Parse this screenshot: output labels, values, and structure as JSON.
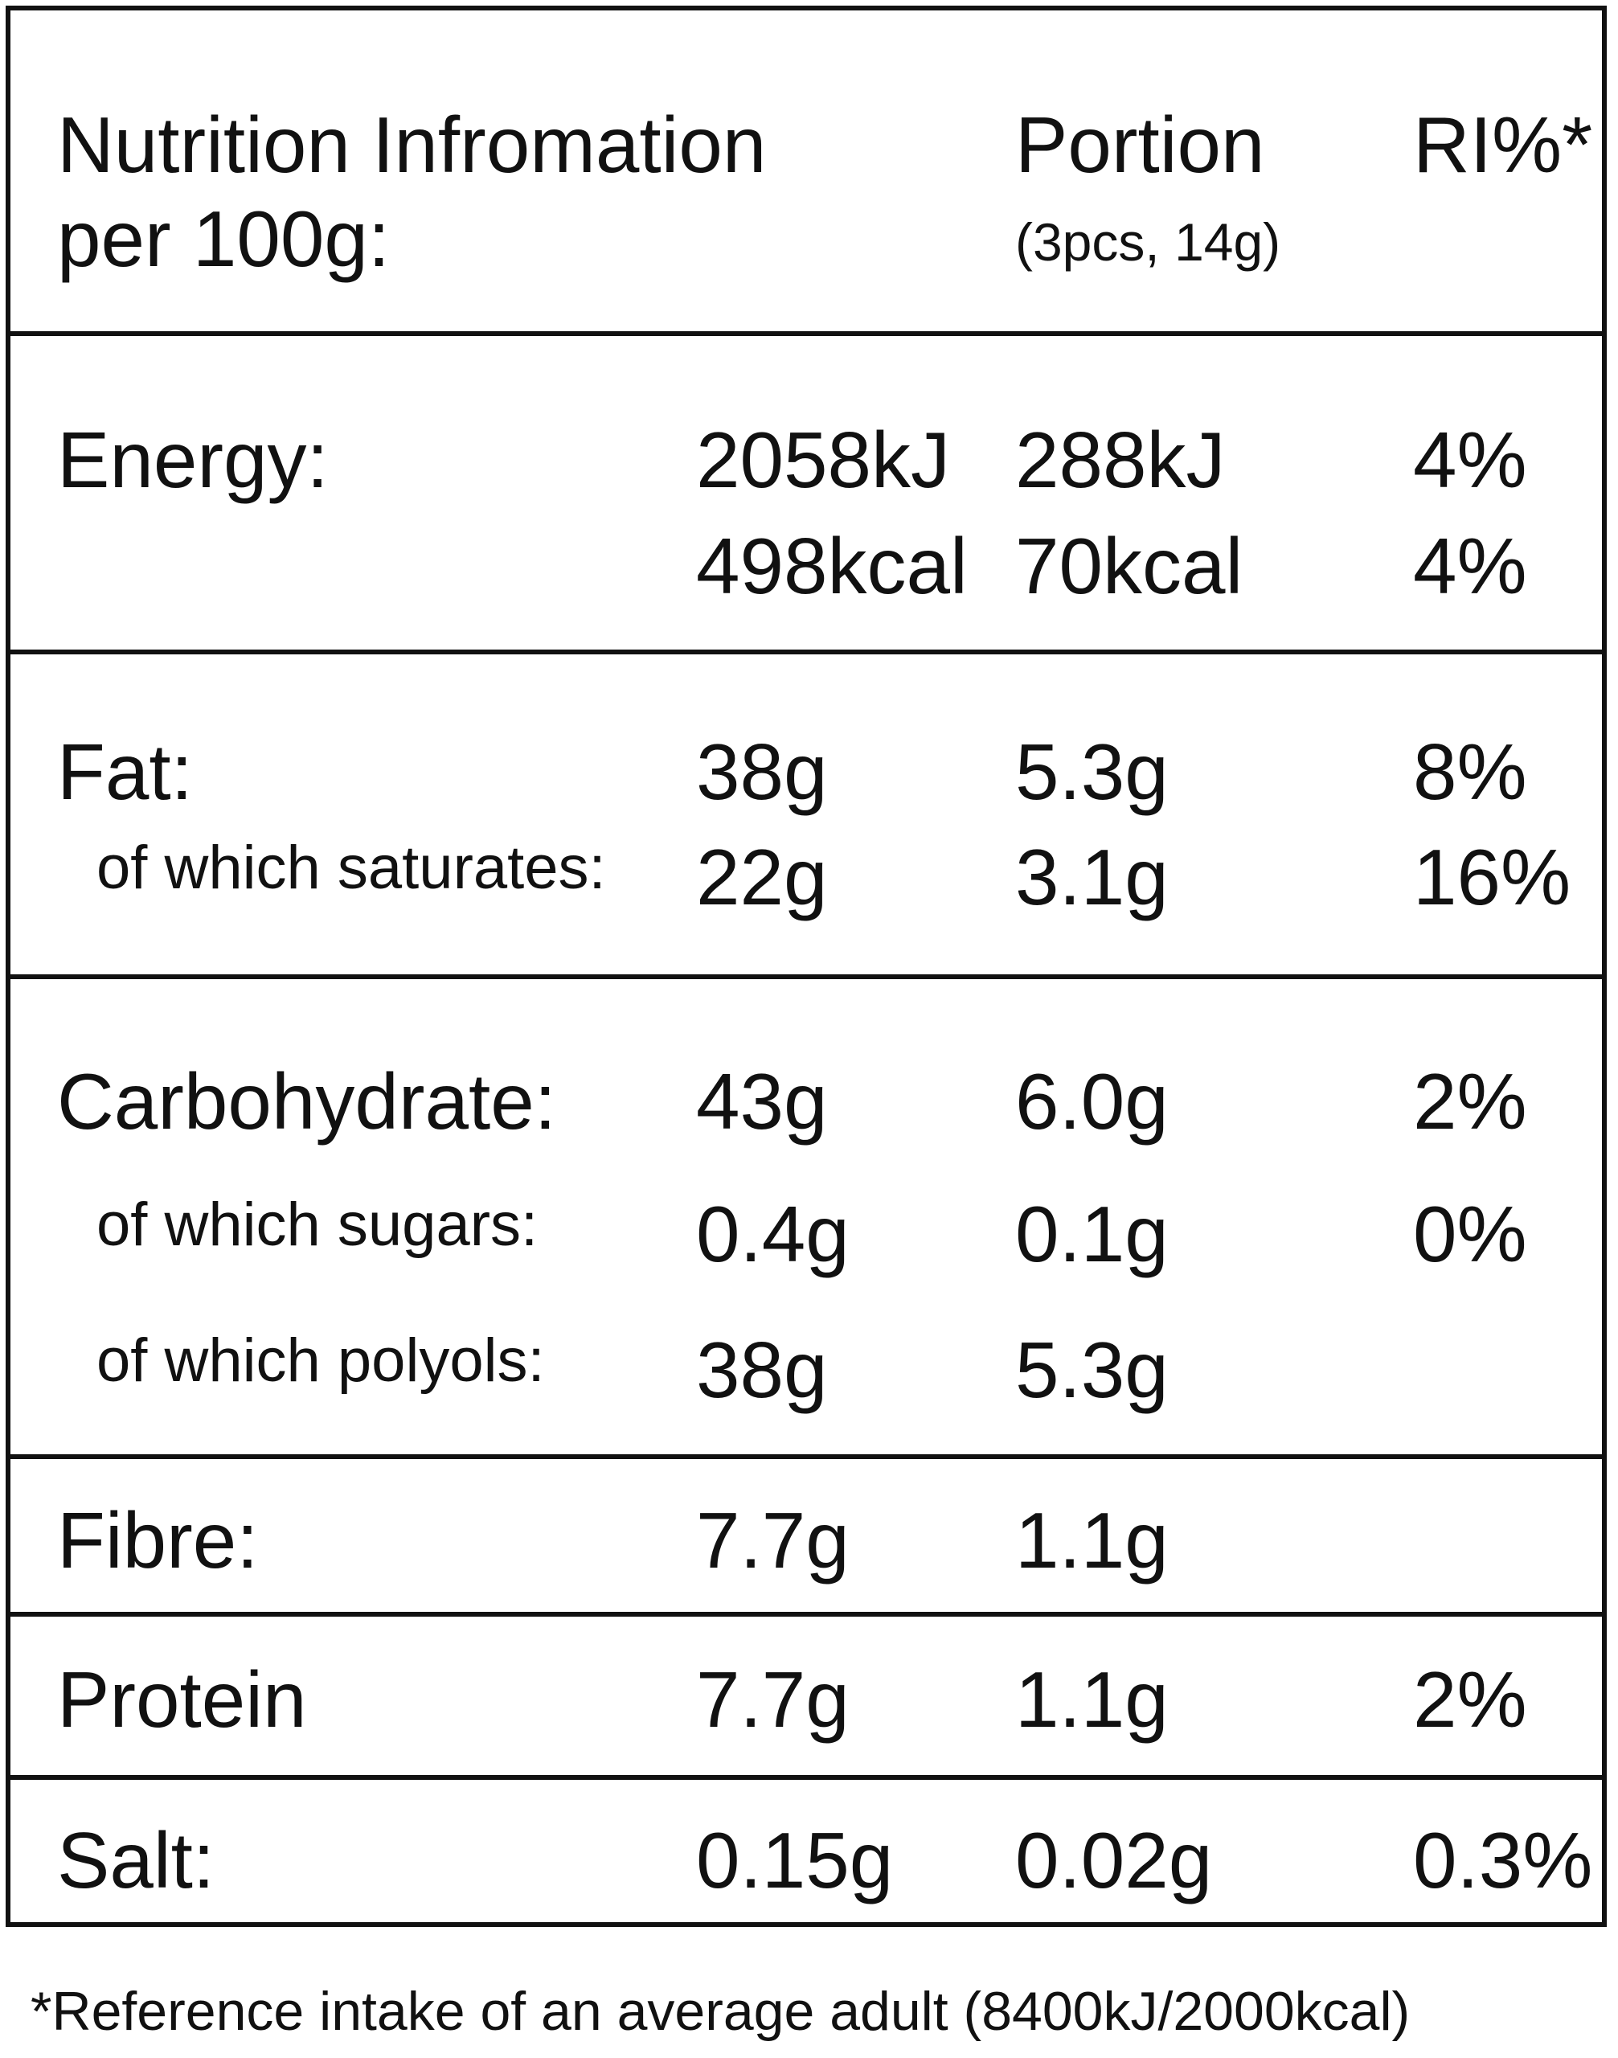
{
  "header": {
    "title_line1": "Nutrition Infromation",
    "title_line2": "per 100g:",
    "portion_label": "Portion",
    "portion_detail": "(3pcs, 14g)",
    "ri_label": "RI%*"
  },
  "energy": {
    "label": "Energy:",
    "per100_kj": "2058kJ",
    "per100_kcal": "498kcal",
    "portion_kj": "288kJ",
    "portion_kcal": "70kcal",
    "ri_kj": "4%",
    "ri_kcal": "4%"
  },
  "fat": {
    "label": "Fat:",
    "per100": "38g",
    "portion": "5.3g",
    "ri": "8%",
    "saturates_label": "of which saturates:",
    "saturates_per100": "22g",
    "saturates_portion": "3.1g",
    "saturates_ri": "16%"
  },
  "carbohydrate": {
    "label": "Carbohydrate:",
    "per100": "43g",
    "portion": "6.0g",
    "ri": "2%",
    "sugars_label": "of which sugars:",
    "sugars_per100": "0.4g",
    "sugars_portion": "0.1g",
    "sugars_ri": "0%",
    "polyols_label": "of which polyols:",
    "polyols_per100": "38g",
    "polyols_portion": "5.3g"
  },
  "fibre": {
    "label": "Fibre:",
    "per100": "7.7g",
    "portion": "1.1g"
  },
  "protein": {
    "label": "Protein",
    "per100": "7.7g",
    "portion": "1.1g",
    "ri": "2%"
  },
  "salt": {
    "label": "Salt:",
    "per100": "0.15g",
    "portion": "0.02g",
    "ri": "0.3%"
  },
  "footnote": "*Reference intake of an average adult (8400kJ/2000kcal)"
}
